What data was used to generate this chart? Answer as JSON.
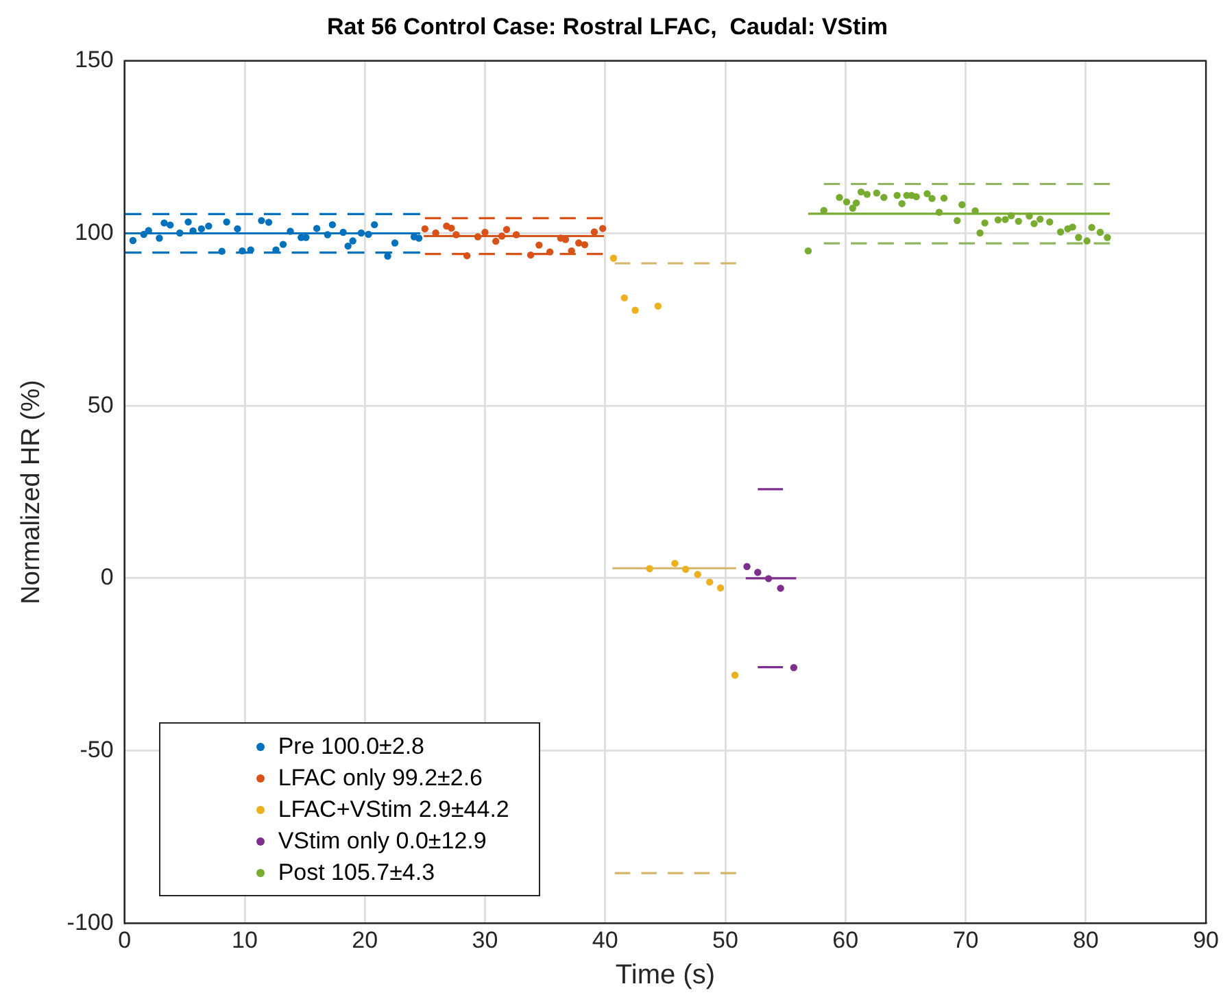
{
  "chart_data": {
    "type": "scatter",
    "title": "Rat 56 Control Case: Rostral LFAC,  Caudal: VStim",
    "xlabel": "Time (s)",
    "ylabel": "Normalized HR (%)",
    "xlim": [
      0,
      90
    ],
    "xticks": [
      0,
      10,
      20,
      30,
      40,
      50,
      60,
      70,
      80,
      90
    ],
    "ylim": [
      -100,
      150
    ],
    "yticks": [
      -100,
      -50,
      0,
      50,
      100,
      150
    ],
    "grid": true,
    "legend": "bottom left",
    "series": [
      {
        "name": "Pre 100.0±2.8",
        "marker": "circle",
        "color": "#0072bd",
        "x": [
          0.7,
          1.6,
          2.0,
          2.9,
          3.3,
          3.8,
          4.6,
          5.3,
          5.7,
          6.4,
          7.0,
          8.1,
          8.5,
          9.4,
          9.8,
          10.5,
          11.4,
          12.0,
          12.6,
          13.2,
          13.8,
          14.7,
          15.1,
          16.0,
          16.9,
          17.3,
          18.2,
          18.6,
          19.0,
          19.7,
          20.3,
          20.8,
          21.9,
          22.5,
          24.1,
          24.5
        ],
        "values": [
          97.9,
          99.7,
          100.8,
          98.6,
          103.0,
          102.4,
          100.1,
          103.3,
          100.7,
          101.3,
          102.1,
          94.8,
          103.3,
          101.3,
          94.9,
          95.2,
          103.7,
          103.2,
          95.2,
          96.8,
          100.6,
          98.8,
          98.8,
          101.4,
          99.6,
          102.5,
          100.3,
          96.3,
          97.8,
          100.1,
          99.7,
          102.5,
          93.4,
          97.2,
          99.0,
          98.6
        ]
      },
      {
        "name": "LFAC only 99.2±2.6",
        "marker": "circle",
        "color": "#d95319",
        "x": [
          25.0,
          25.9,
          26.8,
          27.2,
          27.6,
          28.5,
          29.4,
          30.0,
          30.9,
          31.4,
          31.8,
          32.6,
          33.8,
          34.5,
          35.4,
          36.3,
          36.7,
          37.2,
          37.8,
          38.3,
          39.1,
          39.8
        ],
        "values": [
          101.3,
          100.1,
          102.1,
          101.5,
          99.6,
          93.5,
          99.0,
          100.3,
          97.7,
          99.2,
          101.1,
          99.6,
          93.7,
          96.6,
          94.6,
          98.6,
          98.2,
          94.9,
          97.2,
          96.7,
          100.4,
          101.4
        ]
      },
      {
        "name": "LFAC+VStim 2.9±44.2",
        "marker": "circle",
        "color": "#edb120",
        "x": [
          40.7,
          41.6,
          42.5,
          43.7,
          44.4,
          45.8,
          46.7,
          47.7,
          48.7,
          49.6,
          50.8
        ],
        "values": [
          92.8,
          81.3,
          77.7,
          2.8,
          78.9,
          4.3,
          2.6,
          1.1,
          -1.1,
          -2.8,
          -28.1
        ]
      },
      {
        "name": "VStim only 0.0±12.9",
        "marker": "circle",
        "color": "#7e2f8e",
        "x": [
          51.8,
          52.7,
          53.6,
          54.6,
          55.7
        ],
        "values": [
          3.4,
          1.7,
          -0.1,
          -2.9,
          -25.9
        ]
      },
      {
        "name": "Post 105.7±4.3",
        "marker": "circle",
        "color": "#77ac30",
        "x": [
          56.9,
          58.2,
          59.5,
          60.1,
          60.6,
          60.9,
          61.3,
          61.8,
          62.6,
          63.2,
          64.3,
          64.7,
          65.1,
          65.5,
          65.9,
          66.8,
          67.2,
          67.8,
          68.2,
          69.3,
          69.7,
          70.8,
          71.2,
          71.6,
          72.7,
          73.3,
          73.8,
          74.4,
          75.3,
          75.7,
          76.2,
          77.0,
          77.9,
          78.5,
          78.9,
          79.4,
          80.1,
          80.5,
          81.2,
          81.8
        ],
        "values": [
          94.9,
          106.6,
          110.4,
          109.1,
          107.3,
          108.8,
          112.0,
          111.3,
          111.7,
          110.4,
          111.0,
          108.6,
          111.0,
          111.0,
          110.6,
          111.5,
          110.1,
          106.1,
          110.2,
          103.7,
          108.3,
          106.5,
          100.1,
          103.0,
          103.9,
          104.0,
          105.1,
          103.5,
          105.0,
          102.8,
          104.1,
          103.3,
          100.4,
          101.3,
          101.8,
          98.8,
          97.8,
          101.7,
          100.3,
          98.8
        ]
      },
      {
        "type": "line",
        "color": "#0072bd",
        "line_style": "solid",
        "x": [
          0,
          24.6
        ],
        "values": [
          100,
          100
        ]
      },
      {
        "type": "line",
        "color": "#0072bd",
        "line_style": "dashed",
        "x": [
          0,
          24.6
        ],
        "values": [
          105.6,
          105.6
        ]
      },
      {
        "type": "line",
        "color": "#0072bd",
        "line_style": "dashed",
        "x": [
          0,
          24.6
        ],
        "values": [
          94.4,
          94.4
        ]
      },
      {
        "type": "line",
        "color": "#d95319",
        "line_style": "solid",
        "x": [
          24.9,
          39.9
        ],
        "values": [
          99.2,
          99.2
        ]
      },
      {
        "type": "line",
        "color": "#d95319",
        "line_style": "dashed",
        "x": [
          25.0,
          39.8
        ],
        "values": [
          104.4,
          104.4
        ]
      },
      {
        "type": "line",
        "color": "#d95319",
        "line_style": "dashed",
        "x": [
          25.0,
          39.8
        ],
        "values": [
          94.0,
          94.0
        ]
      },
      {
        "type": "line",
        "color": "#d4b56a",
        "line_style": "solid",
        "x": [
          40.6,
          50.9
        ],
        "values": [
          2.9,
          2.9
        ]
      },
      {
        "type": "line",
        "color": "#d4b56a",
        "line_style": "dashed",
        "x": [
          40.8,
          50.9
        ],
        "values": [
          91.3,
          91.3
        ]
      },
      {
        "type": "line",
        "color": "#d4b56a",
        "line_style": "dashed",
        "x": [
          40.8,
          50.9
        ],
        "values": [
          -85.5,
          -85.5
        ]
      },
      {
        "type": "line",
        "color": "#7e2f8e",
        "line_style": "solid",
        "x": [
          51.7,
          55.9
        ],
        "values": [
          0,
          0
        ]
      },
      {
        "type": "line",
        "color": "#7e2f8e",
        "line_style": "dashed",
        "x": [
          52.7,
          54.8
        ],
        "values": [
          25.8,
          25.8
        ]
      },
      {
        "type": "line",
        "color": "#7e2f8e",
        "line_style": "dashed",
        "x": [
          52.7,
          54.8
        ],
        "values": [
          -25.8,
          -25.8
        ]
      },
      {
        "type": "line",
        "color": "#77ac30",
        "line_style": "solid",
        "x": [
          56.9,
          82.0
        ],
        "values": [
          105.7,
          105.7
        ]
      },
      {
        "type": "line",
        "color": "#8fb560",
        "line_style": "dashed",
        "x": [
          58.2,
          82.0
        ],
        "values": [
          114.3,
          114.3
        ]
      },
      {
        "type": "line",
        "color": "#8fb560",
        "line_style": "dashed",
        "x": [
          58.2,
          82.0
        ],
        "values": [
          97.1,
          97.1
        ]
      }
    ]
  }
}
